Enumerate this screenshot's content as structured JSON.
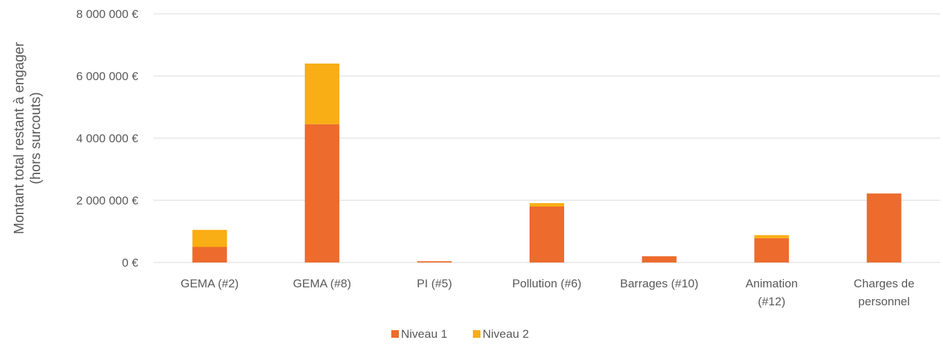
{
  "chart_data": {
    "type": "bar",
    "stacked": true,
    "categories": [
      [
        "GEMA (#2)"
      ],
      [
        "GEMA (#8)"
      ],
      [
        "PI (#5)"
      ],
      [
        "Pollution (#6)"
      ],
      [
        "Barrages (#10)"
      ],
      [
        "Animation",
        "(#12)"
      ],
      [
        "Charges de",
        "personnel"
      ]
    ],
    "series": [
      {
        "name": "Niveau 1",
        "color": "#ED6B2D",
        "values": [
          500000,
          4450000,
          40000,
          1800000,
          200000,
          780000,
          2220000
        ]
      },
      {
        "name": "Niveau 2",
        "color": "#F8AE14",
        "values": [
          550000,
          1950000,
          0,
          110000,
          0,
          100000,
          0
        ]
      }
    ],
    "ylabel_lines": [
      "Montant total restant à engager",
      "(hors surcouts)"
    ],
    "yticks": [
      0,
      2000000,
      4000000,
      6000000,
      8000000
    ],
    "ytick_labels": [
      "0 €",
      "2 000 000 €",
      "4 000 000 €",
      "6 000 000 €",
      "8 000 000 €"
    ],
    "ylim": [
      0,
      8000000
    ],
    "grid": true,
    "legend_position": "bottom"
  }
}
